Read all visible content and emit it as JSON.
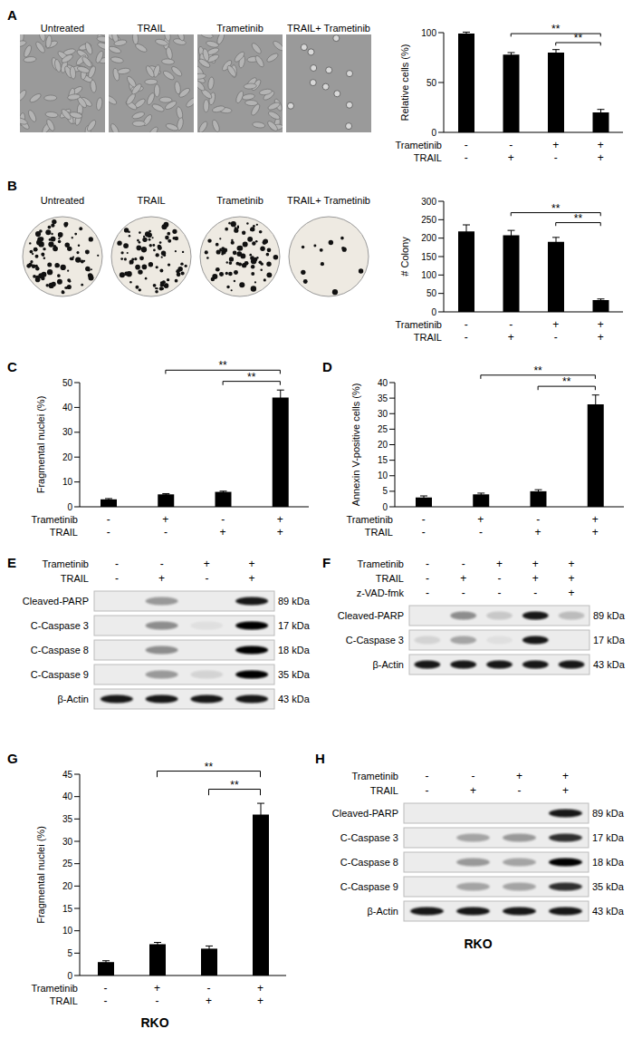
{
  "chart_data": [
    {
      "panel": "A",
      "type": "bar",
      "ylabel": "Relative cells (%)",
      "color": "#000000",
      "grid": false,
      "conditions": [
        {
          "name": "Trametinib",
          "signs": [
            "-",
            "-",
            "+",
            "+"
          ]
        },
        {
          "name": "TRAIL",
          "signs": [
            "-",
            "+",
            "-",
            "+"
          ]
        }
      ],
      "values": [
        99,
        78,
        80,
        20
      ],
      "errors": [
        1.5,
        2,
        3,
        3
      ],
      "ylim": [
        0,
        100
      ],
      "yticks": [
        0,
        50,
        100
      ],
      "significance": [
        {
          "from": 1,
          "to": 3,
          "label": "**"
        },
        {
          "from": 2,
          "to": 3,
          "label": "**"
        }
      ]
    },
    {
      "panel": "B",
      "type": "bar",
      "ylabel": "# Colony",
      "color": "#000000",
      "grid": false,
      "conditions": [
        {
          "name": "Trametinib",
          "signs": [
            "-",
            "-",
            "+",
            "+"
          ]
        },
        {
          "name": "TRAIL",
          "signs": [
            "-",
            "+",
            "-",
            "+"
          ]
        }
      ],
      "values": [
        218,
        208,
        190,
        32
      ],
      "errors": [
        18,
        13,
        12,
        3
      ],
      "ylim": [
        0,
        300
      ],
      "yticks": [
        0,
        50,
        100,
        150,
        200,
        250,
        300
      ],
      "significance": [
        {
          "from": 1,
          "to": 3,
          "label": "**"
        },
        {
          "from": 2,
          "to": 3,
          "label": "**"
        }
      ]
    },
    {
      "panel": "C",
      "type": "bar",
      "ylabel": "Fragmental nuclei (%)",
      "color": "#000000",
      "grid": false,
      "conditions": [
        {
          "name": "Trametinib",
          "signs": [
            "-",
            "+",
            "-",
            "+"
          ]
        },
        {
          "name": "TRAIL",
          "signs": [
            "-",
            "-",
            "+",
            "+"
          ]
        }
      ],
      "values": [
        3,
        5,
        6,
        44
      ],
      "errors": [
        0.3,
        0.3,
        0.3,
        3
      ],
      "ylim": [
        0,
        50
      ],
      "yticks": [
        0,
        5,
        10,
        15,
        20,
        25,
        30,
        35,
        40,
        45,
        50
      ],
      "significance": [
        {
          "from": 1,
          "to": 3,
          "label": "**"
        },
        {
          "from": 2,
          "to": 3,
          "label": "**"
        }
      ]
    },
    {
      "panel": "D",
      "type": "bar",
      "ylabel": "Annexin V-positive cells (%)",
      "color": "#000000",
      "grid": false,
      "conditions": [
        {
          "name": "Trametinib",
          "signs": [
            "-",
            "+",
            "-",
            "+"
          ]
        },
        {
          "name": "TRAIL",
          "signs": [
            "-",
            "-",
            "+",
            "+"
          ]
        }
      ],
      "values": [
        3,
        4,
        5,
        33
      ],
      "errors": [
        0.5,
        0.4,
        0.5,
        3
      ],
      "ylim": [
        0,
        40
      ],
      "yticks": [
        0,
        5,
        10,
        15,
        20,
        25,
        30,
        35,
        40
      ],
      "significance": [
        {
          "from": 1,
          "to": 3,
          "label": "**"
        },
        {
          "from": 2,
          "to": 3,
          "label": "**"
        }
      ]
    },
    {
      "panel": "G",
      "type": "bar",
      "ylabel": "Fragmental nuclei (%)",
      "color": "#000000",
      "grid": false,
      "conditions": [
        {
          "name": "Trametinib",
          "signs": [
            "-",
            "+",
            "-",
            "+"
          ]
        },
        {
          "name": "TRAIL",
          "signs": [
            "-",
            "-",
            "+",
            "+"
          ]
        }
      ],
      "values": [
        3,
        7,
        6,
        36
      ],
      "errors": [
        0.3,
        0.4,
        0.6,
        2.5
      ],
      "ylim": [
        0,
        45
      ],
      "yticks": [
        0,
        5,
        10,
        15,
        20,
        25,
        30,
        35,
        40,
        45
      ],
      "significance": [
        {
          "from": 1,
          "to": 3,
          "label": "**"
        },
        {
          "from": 2,
          "to": 3,
          "label": "**"
        }
      ],
      "annotations": [
        "RKO"
      ]
    }
  ],
  "images": {
    "A": [
      "Untreated",
      "TRAIL",
      "Trametinib",
      "TRAIL+ Trametinib"
    ],
    "B": [
      "Untreated",
      "TRAIL",
      "Trametinib",
      "TRAIL+ Trametinib"
    ]
  },
  "blots": [
    {
      "panel": "E",
      "conditions": [
        {
          "name": "Trametinib",
          "signs": [
            "-",
            "-",
            "+",
            "+"
          ]
        },
        {
          "name": "TRAIL",
          "signs": [
            "-",
            "+",
            "-",
            "+"
          ]
        }
      ],
      "rows": [
        {
          "name": "Cleaved-PARP",
          "size": "89 kDa",
          "intensity": [
            0,
            0.35,
            0,
            0.9
          ]
        },
        {
          "name": "C-Caspase 3",
          "size": "17 kDa",
          "intensity": [
            0,
            0.4,
            0.05,
            1
          ]
        },
        {
          "name": "C-Caspase 8",
          "size": "18 kDa",
          "intensity": [
            0,
            0.4,
            0,
            1
          ]
        },
        {
          "name": "C-Caspase 9",
          "size": "35 kDa",
          "intensity": [
            0,
            0.35,
            0.1,
            1
          ]
        },
        {
          "name": "β-Actin",
          "size": "43 kDa",
          "intensity": [
            0.9,
            0.9,
            0.9,
            0.9
          ]
        }
      ]
    },
    {
      "panel": "F",
      "conditions": [
        {
          "name": "Trametinib",
          "signs": [
            "-",
            "-",
            "+",
            "+",
            "+"
          ]
        },
        {
          "name": "TRAIL",
          "signs": [
            "-",
            "+",
            "-",
            "+",
            "+"
          ]
        },
        {
          "name": "z-VAD-fmk",
          "signs": [
            "-",
            "-",
            "-",
            "-",
            "+"
          ]
        }
      ],
      "rows": [
        {
          "name": "Cleaved-PARP",
          "size": "89 kDa",
          "intensity": [
            0,
            0.4,
            0.15,
            0.9,
            0.2
          ]
        },
        {
          "name": "C-Caspase 3",
          "size": "17 kDa",
          "intensity": [
            0.1,
            0.3,
            0.05,
            0.9,
            0
          ]
        },
        {
          "name": "β-Actin",
          "size": "43 kDa",
          "intensity": [
            0.9,
            0.9,
            0.9,
            0.9,
            0.9
          ]
        }
      ]
    },
    {
      "panel": "H",
      "conditions": [
        {
          "name": "Trametinib",
          "signs": [
            "-",
            "-",
            "+",
            "+"
          ]
        },
        {
          "name": "TRAIL",
          "signs": [
            "-",
            "+",
            "-",
            "+"
          ]
        }
      ],
      "rows": [
        {
          "name": "Cleaved-PARP",
          "size": "89 kDa",
          "intensity": [
            0,
            0,
            0,
            0.9
          ]
        },
        {
          "name": "C-Caspase 3",
          "size": "17 kDa",
          "intensity": [
            0,
            0.3,
            0.35,
            0.8
          ]
        },
        {
          "name": "C-Caspase 8",
          "size": "18 kDa",
          "intensity": [
            0,
            0.35,
            0.3,
            1
          ]
        },
        {
          "name": "C-Caspase 9",
          "size": "35 kDa",
          "intensity": [
            0,
            0.3,
            0.3,
            0.8
          ]
        },
        {
          "name": "β-Actin",
          "size": "43 kDa",
          "intensity": [
            0.9,
            0.9,
            0.9,
            0.9
          ]
        }
      ],
      "annotations": [
        "RKO"
      ]
    }
  ]
}
